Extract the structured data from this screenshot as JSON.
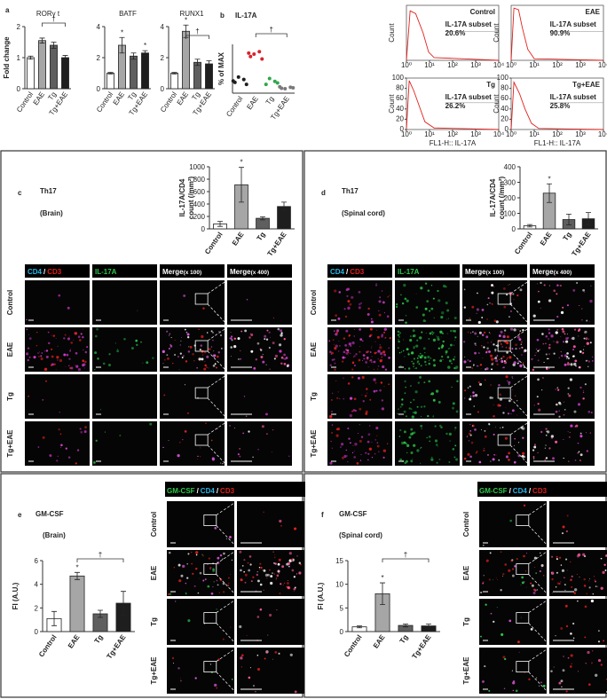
{
  "panel_letters": [
    "a",
    "b",
    "c",
    "d",
    "e",
    "f"
  ],
  "chart_data": [
    {
      "type": "bar",
      "title": "RORγ t",
      "ylabel": "Fold change",
      "categories": [
        "Control",
        "EAE",
        "Tg",
        "Tg+EAE"
      ],
      "values": [
        1,
        1.55,
        1.4,
        1.0
      ],
      "errors": [
        0.05,
        0.08,
        0.1,
        0.07
      ],
      "colors": [
        "#ffffff",
        "#a6a6a6",
        "#5f5f5f",
        "#1e1e1e"
      ],
      "ylim": [
        0,
        2
      ],
      "yticks": [
        0,
        1,
        2
      ],
      "annotations": [
        "†"
      ]
    },
    {
      "type": "bar",
      "title": "BATF",
      "categories": [
        "Control",
        "EAE",
        "Tg",
        "Tg+EAE"
      ],
      "values": [
        1,
        2.8,
        2.1,
        2.3
      ],
      "errors": [
        0.05,
        0.5,
        0.2,
        0.15
      ],
      "colors": [
        "#ffffff",
        "#a6a6a6",
        "#5f5f5f",
        "#1e1e1e"
      ],
      "ylim": [
        0,
        4
      ],
      "yticks": [
        0,
        2,
        4
      ],
      "annotations": [
        "*",
        "*"
      ]
    },
    {
      "type": "bar",
      "title": "RUNX1",
      "categories": [
        "Control",
        "EAE",
        "Tg",
        "Tg+EAE"
      ],
      "values": [
        1,
        3.7,
        1.7,
        1.6
      ],
      "errors": [
        0.05,
        0.4,
        0.2,
        0.2
      ],
      "colors": [
        "#ffffff",
        "#a6a6a6",
        "#5f5f5f",
        "#1e1e1e"
      ],
      "ylim": [
        0,
        4
      ],
      "yticks": [
        0,
        2,
        4
      ],
      "annotations": [
        "*",
        "†"
      ]
    },
    {
      "type": "dot",
      "title": "IL-17A",
      "ylabel": "% of MAX",
      "categories": [
        "Control",
        "EAE",
        "Tg",
        "Tg+EAE"
      ],
      "values": [
        [
          22,
          28,
          33,
          18,
          25
        ],
        [
          75,
          85,
          80,
          70,
          82
        ],
        [
          18,
          24,
          30,
          21
        ],
        [
          10,
          12,
          9,
          11,
          13
        ]
      ],
      "colors": [
        "#1e1e1e",
        "#d9232d",
        "#2ea84a",
        "#7a7a7a"
      ],
      "ylim": [
        0,
        100
      ],
      "annotations": [
        "†"
      ]
    },
    {
      "type": "bar",
      "ylabel": [
        "IL-17A/CD4",
        "count (/mm²)"
      ],
      "categories": [
        "Control",
        "EAE",
        "Tg",
        "Tg+EAE"
      ],
      "values": [
        80,
        710,
        170,
        360
      ],
      "errors": [
        40,
        280,
        25,
        70
      ],
      "colors": [
        "#ffffff",
        "#a6a6a6",
        "#5f5f5f",
        "#1e1e1e"
      ],
      "ylim": [
        0,
        1000
      ],
      "yticks": [
        0,
        200,
        400,
        600,
        800,
        1000
      ],
      "annotations": [
        "*"
      ]
    },
    {
      "type": "bar",
      "ylabel": [
        "IL-17A/CD4",
        "count (/mm²)"
      ],
      "categories": [
        "Control",
        "EAE",
        "Tg",
        "Tg+EAE"
      ],
      "values": [
        20,
        230,
        60,
        65
      ],
      "errors": [
        8,
        60,
        35,
        40
      ],
      "colors": [
        "#ffffff",
        "#a6a6a6",
        "#5f5f5f",
        "#1e1e1e"
      ],
      "ylim": [
        0,
        400
      ],
      "yticks": [
        0,
        100,
        200,
        300,
        400
      ],
      "annotations": [
        "*"
      ]
    },
    {
      "type": "bar",
      "ylabel": "FI (A.U.)",
      "categories": [
        "Control",
        "EAE",
        "Tg",
        "Tg+EAE"
      ],
      "values": [
        1.1,
        4.7,
        1.5,
        2.4
      ],
      "errors": [
        0.6,
        0.3,
        0.3,
        1.0
      ],
      "colors": [
        "#ffffff",
        "#a6a6a6",
        "#5f5f5f",
        "#1e1e1e"
      ],
      "ylim": [
        0,
        6
      ],
      "yticks": [
        0,
        2,
        4,
        6
      ],
      "annotations": [
        "*",
        "†"
      ]
    },
    {
      "type": "bar",
      "ylabel": "FI (A.U.)",
      "categories": [
        "Control",
        "EAE",
        "Tg",
        "Tg+EAE"
      ],
      "values": [
        1,
        8,
        1.3,
        1.2
      ],
      "errors": [
        0.2,
        2.3,
        0.3,
        0.4
      ],
      "colors": [
        "#ffffff",
        "#a6a6a6",
        "#5f5f5f",
        "#1e1e1e"
      ],
      "ylim": [
        0,
        15
      ],
      "yticks": [
        0,
        5,
        10,
        15
      ],
      "annotations": [
        "*",
        "†"
      ]
    }
  ],
  "histograms": [
    {
      "sample": "Control",
      "subset": "IL-17A subset",
      "percent": "20.6%"
    },
    {
      "sample": "EAE",
      "subset": "IL-17A subset",
      "percent": "90.9%"
    },
    {
      "sample": "Tg",
      "subset": "IL-17A subset",
      "percent": "26.2%"
    },
    {
      "sample": "Tg+EAE",
      "subset": "IL-17A subset",
      "percent": "25.8%"
    }
  ],
  "histogram_axis": {
    "ylabel": "Count",
    "xlabel": "FL1-H:: IL-17A",
    "ylim": [
      0,
      100
    ],
    "yticks": [
      0,
      20,
      40,
      60,
      80,
      100
    ],
    "xlim": [
      1,
      10000
    ],
    "xscale": "log",
    "xticks": [
      {
        "value": 1,
        "label": "10⁰"
      },
      {
        "value": 10,
        "label": "10¹"
      },
      {
        "value": 100,
        "label": "10²"
      },
      {
        "value": 1000,
        "label": "10³"
      },
      {
        "value": 10000,
        "label": "10⁴"
      }
    ]
  },
  "th17_panels": [
    {
      "title": "Th17",
      "subtitle": "(Brain)"
    },
    {
      "title": "Th17",
      "subtitle": "(Spinal cord)"
    }
  ],
  "gmcsf_panels": [
    {
      "title": "GM-CSF",
      "subtitle": "(Brain)"
    },
    {
      "title": "GM-CSF",
      "subtitle": "(Spinal cord)"
    }
  ],
  "th17_headers": [
    [
      "CD4",
      "/",
      "CD3"
    ],
    [
      "IL-17A"
    ],
    [
      "Merge",
      "(x 100)"
    ],
    [
      "Merge",
      "(x 400)"
    ]
  ],
  "gmcsf_header": [
    "GM-CSF",
    "/",
    "CD4",
    "/",
    "CD3"
  ],
  "row_labels": [
    "Control",
    "EAE",
    "Tg",
    "Tg+EAE"
  ]
}
